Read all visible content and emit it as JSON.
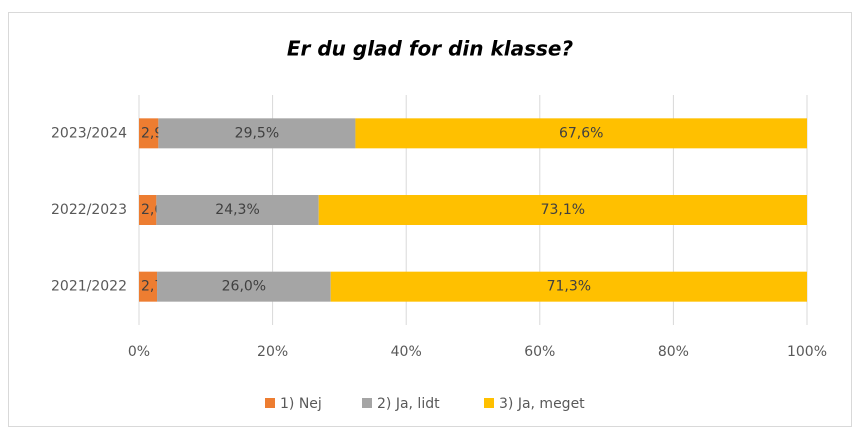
{
  "chart_data": {
    "type": "stacked-bar-horizontal",
    "title": "Er du glad for din klasse?",
    "categories": [
      "2023/2024",
      "2022/2023",
      "2021/2022"
    ],
    "series": [
      {
        "name": "1) Nej",
        "color": "#ed7d31",
        "values": [
          2.9,
          2.6,
          2.7
        ],
        "value_labels": [
          "2,9%",
          "2,6%",
          "2,7%"
        ]
      },
      {
        "name": "2) Ja, lidt",
        "color": "#a5a5a5",
        "values": [
          29.5,
          24.3,
          26.0
        ],
        "value_labels": [
          "29,5%",
          "24,3%",
          "26,0%"
        ]
      },
      {
        "name": "3) Ja, meget",
        "color": "#ffc000",
        "values": [
          67.6,
          73.1,
          71.3
        ],
        "value_labels": [
          "67,6%",
          "73,1%",
          "71,3%"
        ]
      }
    ],
    "xlim": [
      0,
      100
    ],
    "xticks": [
      {
        "value": 0,
        "label": "0%"
      },
      {
        "value": 20,
        "label": "20%"
      },
      {
        "value": 40,
        "label": "40%"
      },
      {
        "value": 60,
        "label": "60%"
      },
      {
        "value": 80,
        "label": "80%"
      },
      {
        "value": 100,
        "label": "100%"
      }
    ],
    "grid": true,
    "legend": "bottom"
  }
}
